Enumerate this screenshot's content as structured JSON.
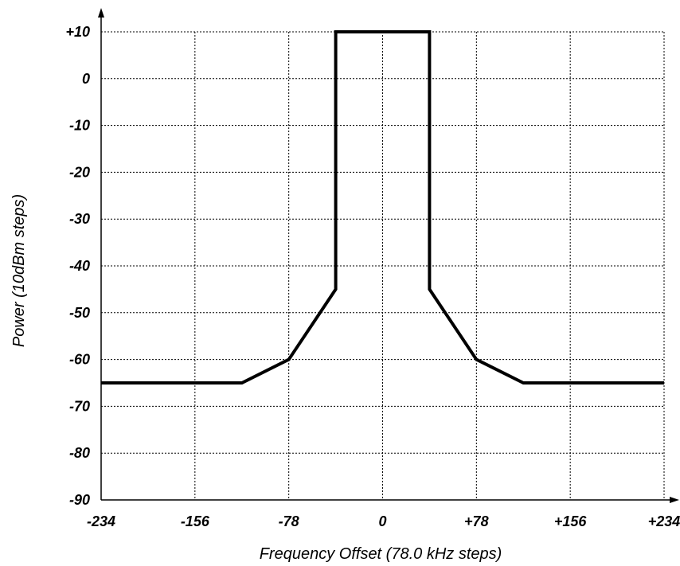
{
  "chart_data": {
    "type": "line",
    "title": "",
    "xlabel": "Frequency Offset (78.0 kHz steps)",
    "ylabel": "Power (10dBm steps)",
    "xlim": [
      -234,
      234
    ],
    "ylim": [
      -90,
      10
    ],
    "grid": true,
    "xticks": [
      {
        "value": -234,
        "label": "-234"
      },
      {
        "value": -156,
        "label": "-156"
      },
      {
        "value": -78,
        "label": "-78"
      },
      {
        "value": 0,
        "label": "0"
      },
      {
        "value": 78,
        "label": "+78"
      },
      {
        "value": 156,
        "label": "+156"
      },
      {
        "value": 234,
        "label": "+234"
      }
    ],
    "yticks": [
      {
        "value": 10,
        "label": "+10"
      },
      {
        "value": 0,
        "label": "0"
      },
      {
        "value": -10,
        "label": "-10"
      },
      {
        "value": -20,
        "label": "-20"
      },
      {
        "value": -30,
        "label": "-30"
      },
      {
        "value": -40,
        "label": "-40"
      },
      {
        "value": -50,
        "label": "-50"
      },
      {
        "value": -60,
        "label": "-60"
      },
      {
        "value": -70,
        "label": "-70"
      },
      {
        "value": -80,
        "label": "-80"
      },
      {
        "value": -90,
        "label": "-90"
      }
    ],
    "series": [
      {
        "x": [
          -234,
          -117,
          -78,
          -39,
          -39,
          39,
          39,
          78,
          117,
          234
        ],
        "y": [
          -65,
          -65,
          -60,
          -45,
          10,
          10,
          -45,
          -60,
          -65,
          -65
        ]
      }
    ]
  }
}
